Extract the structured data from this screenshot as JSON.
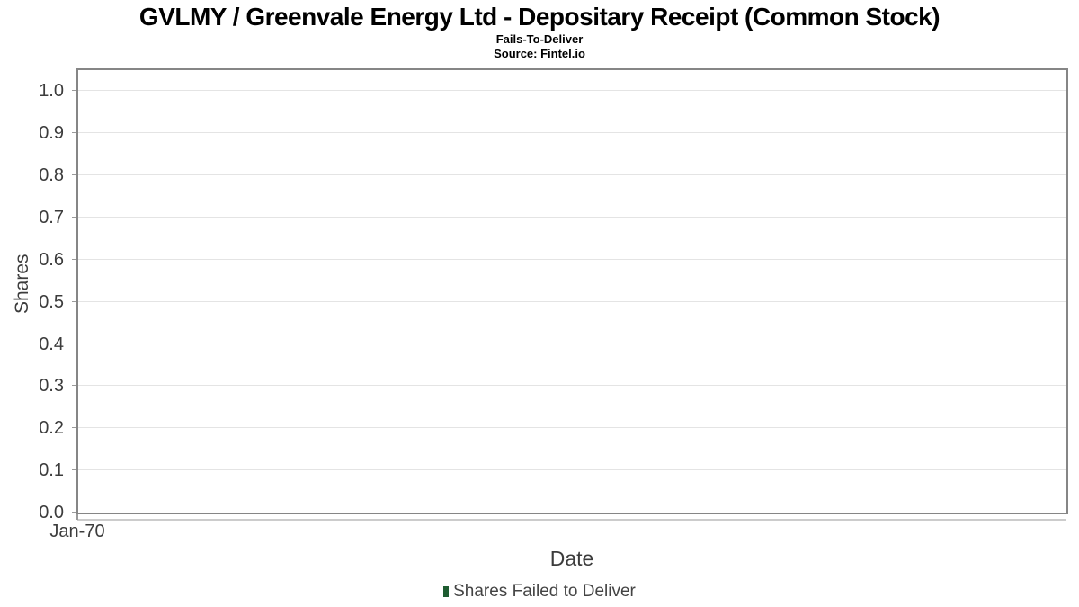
{
  "chart_data": {
    "type": "bar",
    "title": "GVLMY / Greenvale Energy Ltd - Depositary Receipt (Common Stock)",
    "subtitle": "Fails-To-Deliver",
    "source": "Source: Fintel.io",
    "xlabel": "Date",
    "ylabel": "Shares",
    "x_tick_labels": [
      "Jan-70"
    ],
    "y_ticks": [
      0.0,
      0.1,
      0.2,
      0.3,
      0.4,
      0.5,
      0.6,
      0.7,
      0.8,
      0.9,
      1.0
    ],
    "ylim": [
      0,
      1.05
    ],
    "grid": true,
    "legend_position": "bottom",
    "categories": [],
    "series": [
      {
        "name": "Shares Failed to Deliver",
        "color": "#1e5c31",
        "values": []
      }
    ]
  },
  "colors": {
    "plot_border": "#868686",
    "gridline": "#e4e4e4",
    "axis_line": "#cccccc",
    "tick_mark": "#9a9a9a",
    "tick_text": "#3c3c3c",
    "legend_text": "#444444",
    "title_text": "#000000",
    "legend_swatch": "#1e5c31"
  }
}
